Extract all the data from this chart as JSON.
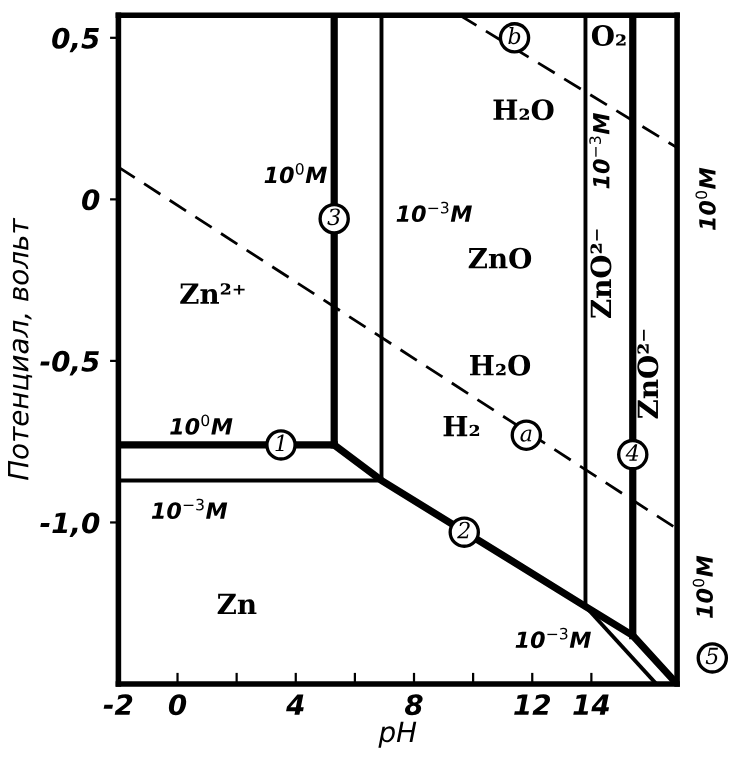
{
  "chart_data": {
    "type": "line",
    "xlabel": "pH",
    "ylabel": "Потенциал, вольт",
    "xlim": [
      -2,
      16.9
    ],
    "ylim": [
      -1.5,
      0.57
    ],
    "xticks": [
      -2,
      0,
      {
        "value": 2,
        "label": null
      },
      4,
      {
        "value": 6,
        "label": null
      },
      8,
      {
        "value": 10,
        "label": null
      },
      12,
      14
    ],
    "yticks": [
      {
        "value": 0.5,
        "label": "0,5"
      },
      0,
      {
        "value": -0.5,
        "label": "-0,5"
      },
      {
        "value": -1.0,
        "label": "-1,0"
      }
    ],
    "grid": false,
    "legend": false,
    "marker": "none",
    "series": [
      {
        "color": "#000000",
        "x": [
          -2,
          5.3
        ],
        "values": [
          -0.76,
          -0.76
        ]
      },
      {
        "color": "#000000",
        "x": [
          -2,
          6.9
        ],
        "values": [
          -0.87,
          -0.87
        ]
      },
      {
        "color": "#000000",
        "x": [
          5.3,
          5.3
        ],
        "values": [
          -0.76,
          0.57
        ]
      },
      {
        "color": "#000000",
        "x": [
          6.9,
          6.9
        ],
        "values": [
          -0.87,
          0.57
        ]
      },
      {
        "color": "#000000",
        "x": [
          5.3,
          6.9,
          13.8,
          15.4,
          16.9
        ],
        "values": [
          -0.76,
          -0.87,
          -1.26,
          -1.35,
          -1.5
        ]
      },
      {
        "color": "#000000",
        "x": [
          13.8,
          16.2
        ],
        "values": [
          -1.26,
          -1.5
        ]
      },
      {
        "color": "#000000",
        "x": [
          13.8,
          13.8
        ],
        "values": [
          -1.26,
          0.57
        ]
      },
      {
        "color": "#000000",
        "x": [
          15.4,
          15.4
        ],
        "values": [
          -1.35,
          0.57
        ]
      },
      {
        "color": "#000000",
        "x": [
          -2,
          16.9
        ],
        "values": [
          0.1,
          -1.02
        ],
        "line_style": "dashed"
      },
      {
        "color": "#000000",
        "x": [
          9.55,
          16.9
        ],
        "values": [
          0.57,
          0.16
        ],
        "line_style": "dashed"
      }
    ],
    "annotations": [
      "O₂",
      "H₂O",
      "ZnO",
      "Zn²⁺",
      "H₂O",
      "H₂",
      "Zn",
      "ZnO²⁻",
      "ZnO²⁻",
      "10$^{0}$M",
      "10$^{−3}$M",
      "10$^{0}$M",
      "10$^{−3}$M",
      "10$^{−3}$M",
      "10$^{−3}$M",
      "10$^{0}$M",
      "10$^{0}$M",
      {
        "text": "1",
        "x": 3.5,
        "y": -0.76
      },
      {
        "text": "2",
        "x": 9.7,
        "y": -1.03
      },
      {
        "text": "3",
        "x": 5.3,
        "y": -0.06
      },
      {
        "text": "4",
        "x": 15.4,
        "y": -0.79
      },
      "5",
      {
        "text": "a",
        "x": 11.8,
        "y": -0.73
      },
      {
        "text": "b",
        "x": 11.4,
        "y": 0.5
      }
    ]
  }
}
